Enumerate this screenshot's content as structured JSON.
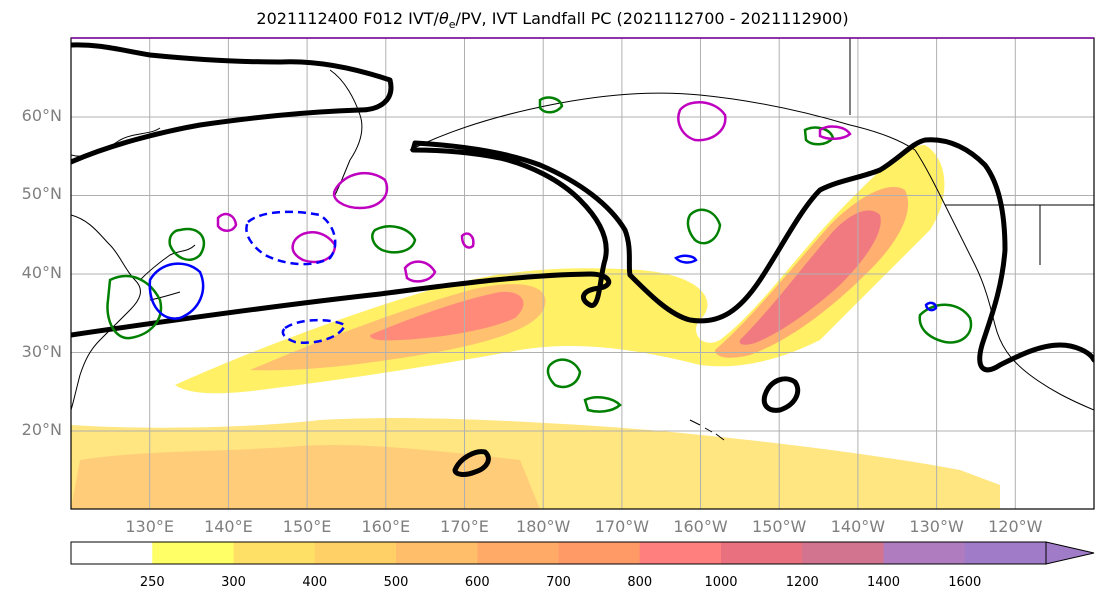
{
  "title": {
    "prefix": "2021112400 F012 IVT/",
    "theta": "θ",
    "theta_sub": "e",
    "suffix": "/PV, IVT Landfall PC (2021112700 - 2021112900)"
  },
  "map": {
    "projection": "cylindrical",
    "lon_range": [
      120,
      250
    ],
    "lat_range": [
      10,
      70
    ],
    "lat_labels": [
      "20°N",
      "30°N",
      "40°N",
      "50°N",
      "60°N"
    ],
    "lon_labels": [
      "130°E",
      "140°E",
      "150°E",
      "160°E",
      "170°E",
      "180°W",
      "170°W",
      "160°W",
      "150°W",
      "140°W",
      "130°W",
      "120°W"
    ],
    "gridlines": true,
    "contour_colors": {
      "landfall_pc": "#000000",
      "theta_e": "#008000",
      "pv_positive": "#c000c0",
      "pv_negative": "#0000ff"
    },
    "coastline_color": "#000000"
  },
  "colorbar": {
    "levels": [
      "250",
      "300",
      "400",
      "500",
      "600",
      "700",
      "800",
      "1000",
      "1200",
      "1400",
      "1600"
    ],
    "colors": [
      "#ffffff",
      "#ffff66",
      "#ffe066",
      "#ffd066",
      "#ffbf6a",
      "#ffaa66",
      "#ff9966",
      "#ff7f7f",
      "#e8707f",
      "#d27490",
      "#b07cc0",
      "#a07cc8"
    ],
    "extend": "max"
  }
}
